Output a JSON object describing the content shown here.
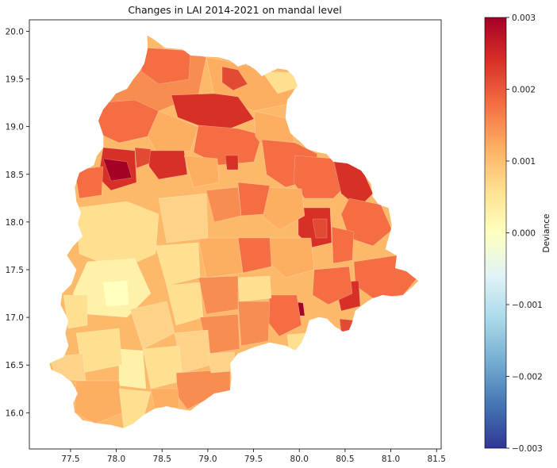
{
  "title": "Changes in LAI 2014-2021 on mandal level",
  "chart_data": {
    "type": "choropleth",
    "title": "Changes in LAI 2014-2021 on mandal level",
    "xlim": [
      77.05,
      81.55
    ],
    "ylim": [
      15.62,
      20.12
    ],
    "x_ticks": [
      77.5,
      78.0,
      78.5,
      79.0,
      79.5,
      80.0,
      80.5,
      81.0,
      81.5
    ],
    "x_tick_labels": [
      "77.5",
      "78.0",
      "78.5",
      "79.0",
      "79.5",
      "80.0",
      "80.5",
      "81.0",
      "81.5"
    ],
    "y_ticks": [
      16.0,
      16.5,
      17.0,
      17.5,
      18.0,
      18.5,
      19.0,
      19.5,
      20.0
    ],
    "y_tick_labels": [
      "16.0",
      "16.5",
      "17.0",
      "17.5",
      "18.0",
      "18.5",
      "19.0",
      "19.5",
      "20.0"
    ],
    "grid": false,
    "colormap": "RdYlBu_r",
    "colorbar": {
      "label": "Deviance",
      "range": [
        -0.003,
        0.003
      ],
      "ticks": [
        0.003,
        0.002,
        0.001,
        0.0,
        -0.001,
        -0.002,
        -0.003
      ],
      "tick_labels": [
        "0.003",
        "0.002",
        "0.001",
        "0.000",
        "−0.001",
        "−0.002",
        "−0.003"
      ],
      "colors": [
        "#313695",
        "#4575b4",
        "#74add1",
        "#abd9e9",
        "#e0f3f8",
        "#ffffbf",
        "#fee090",
        "#fdae61",
        "#f46d43",
        "#d73027",
        "#a50026"
      ]
    },
    "region_value_range_shown": [
      0.0002,
      0.003
    ]
  }
}
